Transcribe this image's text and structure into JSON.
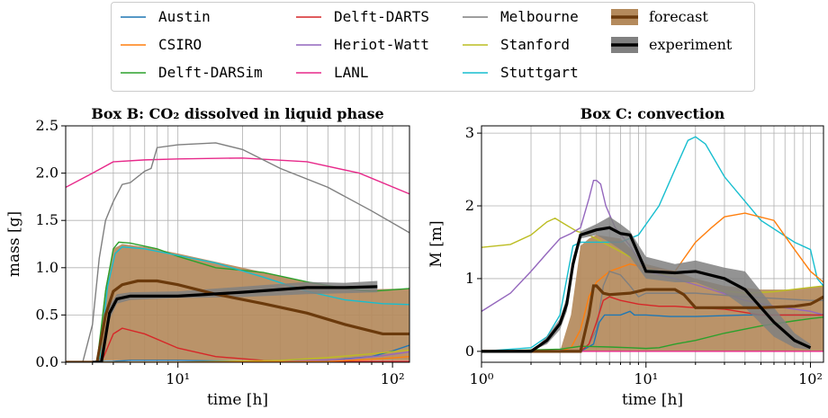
{
  "colors": {
    "Austin": "#1f77b4",
    "CSIRO": "#ff7f0e",
    "Delft-DARSim": "#2ca02c",
    "Delft-DARTS": "#d62728",
    "Heriot-Watt": "#9467bd",
    "LANL": "#e7298a",
    "Melbourne": "#7f7f7f",
    "Stanford": "#bcbd22",
    "Stuttgart": "#17becf",
    "forecast_fill": "#b48a5c",
    "forecast_line": "#6b3a0c",
    "experiment_band": "#808080",
    "experiment_line": "#000000"
  },
  "legend": {
    "items": [
      {
        "key": "Austin",
        "label": "Austin",
        "kind": "line",
        "mono": true
      },
      {
        "key": "CSIRO",
        "label": "CSIRO",
        "kind": "line",
        "mono": true
      },
      {
        "key": "Delft-DARSim",
        "label": "Delft-DARSim",
        "kind": "line",
        "mono": true
      },
      {
        "key": "Delft-DARTS",
        "label": "Delft-DARTS",
        "kind": "line",
        "mono": true
      },
      {
        "key": "Heriot-Watt",
        "label": "Heriot-Watt",
        "kind": "line",
        "mono": true
      },
      {
        "key": "LANL",
        "label": "LANL",
        "kind": "line",
        "mono": true
      },
      {
        "key": "Melbourne",
        "label": "Melbourne",
        "kind": "line",
        "mono": true
      },
      {
        "key": "Stanford",
        "label": "Stanford",
        "kind": "line",
        "mono": true
      },
      {
        "key": "Stuttgart",
        "label": "Stuttgart",
        "kind": "line",
        "mono": true
      },
      {
        "key": "forecast",
        "label": "forecast",
        "kind": "forecast",
        "mono": false
      },
      {
        "key": "experiment",
        "label": "experiment",
        "kind": "experiment",
        "mono": false
      }
    ]
  },
  "chart_data": [
    {
      "type": "line",
      "title": "Box B: CO₂ dissolved in liquid phase",
      "xlabel": "time [h]",
      "ylabel": "mass [g]",
      "xscale": "log",
      "xlim": [
        3,
        120
      ],
      "ylim": [
        0,
        2.5
      ],
      "xticks": [
        {
          "v": 10,
          "label": "10¹"
        },
        {
          "v": 100,
          "label": "10²"
        }
      ],
      "yticks": [
        {
          "v": 0,
          "label": "0.0"
        },
        {
          "v": 0.5,
          "label": "0.5"
        },
        {
          "v": 1.0,
          "label": "1.0"
        },
        {
          "v": 1.5,
          "label": "1.5"
        },
        {
          "v": 2.0,
          "label": "2.0"
        },
        {
          "v": 2.5,
          "label": "2.5"
        }
      ],
      "grid": true,
      "series": [
        {
          "key": "LANL",
          "x": [
            3,
            4,
            5,
            7,
            10,
            20,
            40,
            70,
            120
          ],
          "y": [
            1.85,
            2.0,
            2.12,
            2.14,
            2.15,
            2.16,
            2.12,
            2.0,
            1.78
          ]
        },
        {
          "key": "Melbourne",
          "x": [
            3,
            3.6,
            4.0,
            4.3,
            4.6,
            5.0,
            5.5,
            6.0,
            7.0,
            7.5,
            8.0,
            10,
            15,
            20,
            30,
            50,
            80,
            120
          ],
          "y": [
            0,
            0.0,
            0.4,
            1.1,
            1.5,
            1.7,
            1.88,
            1.9,
            2.02,
            2.05,
            2.27,
            2.3,
            2.32,
            2.25,
            2.05,
            1.85,
            1.6,
            1.37
          ]
        },
        {
          "key": "Delft-DARSim",
          "x": [
            3,
            4.2,
            4.6,
            5.0,
            5.3,
            6,
            8,
            10,
            15,
            25,
            40,
            60,
            80,
            120
          ],
          "y": [
            0,
            0.0,
            0.75,
            1.2,
            1.27,
            1.26,
            1.2,
            1.12,
            1.0,
            0.95,
            0.85,
            0.78,
            0.75,
            0.78
          ]
        },
        {
          "key": "Stuttgart",
          "x": [
            3,
            4.3,
            4.7,
            5.1,
            5.5,
            7,
            10,
            15,
            25,
            40,
            60,
            90,
            120
          ],
          "y": [
            0,
            0.0,
            0.8,
            1.15,
            1.22,
            1.2,
            1.13,
            1.05,
            0.9,
            0.75,
            0.66,
            0.62,
            0.61
          ]
        },
        {
          "key": "Delft-DARTS",
          "x": [
            3,
            4.4,
            5.0,
            5.5,
            7,
            10,
            15,
            25,
            40,
            60,
            90,
            120
          ],
          "y": [
            0,
            0.0,
            0.3,
            0.36,
            0.3,
            0.15,
            0.06,
            0.02,
            0.01,
            0.01,
            0.01,
            0.01
          ]
        },
        {
          "key": "Austin",
          "x": [
            3,
            5,
            6,
            10,
            20,
            50,
            80,
            100,
            120
          ],
          "y": [
            0,
            0.01,
            0.02,
            0.02,
            0.01,
            0.02,
            0.06,
            0.12,
            0.18
          ]
        },
        {
          "key": "Heriot-Watt",
          "x": [
            3,
            10,
            30,
            60,
            90,
            120
          ],
          "y": [
            0,
            0.0,
            0.01,
            0.03,
            0.07,
            0.11
          ]
        },
        {
          "key": "Stanford",
          "x": [
            3,
            10,
            30,
            50,
            80,
            120
          ],
          "y": [
            0,
            0.0,
            0.02,
            0.05,
            0.09,
            0.13
          ]
        },
        {
          "key": "CSIRO",
          "x": [
            3,
            10,
            50,
            80,
            120
          ],
          "y": [
            0,
            0.0,
            0.01,
            0.03,
            0.06
          ]
        }
      ],
      "forecast_band": {
        "x": [
          3,
          4.2,
          4.6,
          5.0,
          5.5,
          7,
          10,
          20,
          40,
          70,
          120
        ],
        "lower": [
          0,
          0.0,
          0.02,
          0.02,
          0.02,
          0.02,
          0.02,
          0.02,
          0.02,
          0.02,
          0.02
        ],
        "upper": [
          0,
          0.0,
          0.8,
          1.2,
          1.25,
          1.22,
          1.15,
          1.0,
          0.85,
          0.77,
          0.78
        ]
      },
      "forecast": {
        "x": [
          3,
          4.2,
          4.6,
          5.0,
          5.5,
          6.5,
          8,
          10,
          15,
          25,
          40,
          60,
          90,
          120
        ],
        "y": [
          0,
          0.0,
          0.5,
          0.75,
          0.82,
          0.86,
          0.86,
          0.82,
          0.72,
          0.62,
          0.52,
          0.4,
          0.3,
          0.3
        ]
      },
      "experiment_band": {
        "x": [
          4.0,
          4.4,
          4.8,
          5.2,
          6,
          10,
          20,
          40,
          60,
          85
        ],
        "lower": [
          0,
          0.0,
          0.45,
          0.62,
          0.66,
          0.68,
          0.69,
          0.72,
          0.73,
          0.74
        ],
        "upper": [
          0,
          0.05,
          0.6,
          0.72,
          0.74,
          0.75,
          0.8,
          0.85,
          0.84,
          0.86
        ]
      },
      "experiment": {
        "x": [
          4.0,
          4.4,
          4.8,
          5.2,
          6,
          10,
          20,
          40,
          60,
          85
        ],
        "y": [
          0,
          0.0,
          0.52,
          0.67,
          0.7,
          0.7,
          0.74,
          0.79,
          0.79,
          0.8
        ]
      }
    },
    {
      "type": "line",
      "title": "Box C: convection",
      "xlabel": "time [h]",
      "ylabel": "M [m]",
      "xscale": "log",
      "xlim": [
        1,
        120
      ],
      "ylim": [
        -0.15,
        3.1
      ],
      "xticks": [
        {
          "v": 1,
          "label": "10⁰"
        },
        {
          "v": 10,
          "label": "10¹"
        },
        {
          "v": 100,
          "label": "10²"
        }
      ],
      "yticks": [
        {
          "v": 0,
          "label": "0"
        },
        {
          "v": 1,
          "label": "1"
        },
        {
          "v": 2,
          "label": "2"
        },
        {
          "v": 3,
          "label": "3"
        }
      ],
      "grid": true,
      "series": [
        {
          "key": "LANL",
          "x": [
            1,
            120
          ],
          "y": [
            0,
            0
          ]
        },
        {
          "key": "Stanford",
          "x": [
            1,
            1.5,
            2,
            2.5,
            2.8,
            3.2,
            3.8,
            4.5,
            6,
            8,
            10,
            15,
            25,
            40,
            60,
            100,
            120
          ],
          "y": [
            1.43,
            1.47,
            1.6,
            1.78,
            1.83,
            1.75,
            1.65,
            1.6,
            1.45,
            1.3,
            1.15,
            1.0,
            0.85,
            0.8,
            0.82,
            0.88,
            0.9
          ]
        },
        {
          "key": "Heriot-Watt",
          "x": [
            1,
            1.5,
            2.0,
            2.5,
            3.0,
            3.5,
            4.0,
            4.5,
            4.8,
            5.0,
            5.3,
            5.7,
            6.5,
            8,
            10,
            15,
            25,
            40,
            60,
            100,
            120
          ],
          "y": [
            0.55,
            0.8,
            1.1,
            1.35,
            1.55,
            1.62,
            1.7,
            2.1,
            2.35,
            2.35,
            2.3,
            2.0,
            1.7,
            1.45,
            1.1,
            1.0,
            0.85,
            0.7,
            0.62,
            0.55,
            0.5
          ]
        },
        {
          "key": "Stuttgart",
          "x": [
            1,
            2,
            2.5,
            3.0,
            3.3,
            3.6,
            4,
            5,
            7,
            9,
            12,
            15,
            18,
            20,
            23,
            30,
            50,
            80,
            100,
            110,
            120
          ],
          "y": [
            0,
            0.05,
            0.2,
            0.5,
            1.0,
            1.45,
            1.5,
            1.5,
            1.5,
            1.6,
            2.0,
            2.5,
            2.9,
            2.95,
            2.85,
            2.4,
            1.8,
            1.5,
            1.4,
            1.0,
            0.9
          ]
        },
        {
          "key": "CSIRO",
          "x": [
            1,
            3,
            3.5,
            4.0,
            4.5,
            5,
            6,
            8,
            10,
            15,
            20,
            25,
            30,
            40,
            60,
            80,
            100,
            120
          ],
          "y": [
            0,
            0.0,
            0.05,
            0.3,
            0.75,
            0.95,
            1.1,
            1.2,
            1.15,
            1.1,
            1.5,
            1.7,
            1.85,
            1.9,
            1.8,
            1.4,
            1.1,
            0.95
          ]
        },
        {
          "key": "Melbourne",
          "x": [
            1,
            4,
            4.5,
            5,
            5.5,
            6,
            7,
            8,
            9,
            10,
            12,
            20,
            40,
            70,
            100,
            120
          ],
          "y": [
            0,
            0.0,
            0.1,
            0.3,
            0.9,
            1.1,
            1.05,
            0.9,
            0.75,
            0.8,
            0.8,
            0.8,
            0.75,
            0.72,
            0.7,
            0.7
          ]
        },
        {
          "key": "Austin",
          "x": [
            1,
            4,
            4.8,
            5.2,
            5.6,
            7,
            8,
            8.5,
            10,
            14,
            20,
            40,
            70,
            100,
            120
          ],
          "y": [
            0,
            0.0,
            0.1,
            0.4,
            0.5,
            0.5,
            0.55,
            0.5,
            0.5,
            0.48,
            0.48,
            0.5,
            0.5,
            0.5,
            0.5
          ]
        },
        {
          "key": "Delft-DARTS",
          "x": [
            1,
            4,
            4.5,
            5,
            5.5,
            6,
            7,
            9,
            12,
            15,
            20,
            30,
            50,
            80,
            100,
            120
          ],
          "y": [
            0,
            0.0,
            0.1,
            0.4,
            0.7,
            0.75,
            0.7,
            0.65,
            0.62,
            0.62,
            0.6,
            0.58,
            0.5,
            0.5,
            0.5,
            0.5
          ]
        },
        {
          "key": "Delft-DARSim",
          "x": [
            1,
            3,
            4,
            6,
            8,
            10,
            12,
            15,
            20,
            30,
            50,
            80,
            100,
            120
          ],
          "y": [
            0,
            0.03,
            0.07,
            0.06,
            0.05,
            0.04,
            0.05,
            0.1,
            0.15,
            0.25,
            0.35,
            0.42,
            0.45,
            0.47
          ]
        }
      ],
      "forecast_band": {
        "x": [
          1,
          3.0,
          3.5,
          4.0,
          4.5,
          5,
          7,
          10,
          15,
          20,
          30,
          50,
          80,
          100,
          120
        ],
        "lower": [
          0,
          0.0,
          0.0,
          0.0,
          0.0,
          0.0,
          0.0,
          0.0,
          0.0,
          0.0,
          0.0,
          0.0,
          0.0,
          0.0,
          0.0
        ],
        "upper": [
          0,
          0.0,
          0.5,
          1.45,
          1.55,
          1.6,
          1.55,
          1.2,
          1.1,
          1.0,
          0.9,
          0.85,
          0.85,
          0.88,
          0.9
        ]
      },
      "forecast": {
        "x": [
          1,
          4.0,
          4.5,
          4.8,
          5.0,
          5.5,
          6,
          8,
          10,
          15,
          17,
          20,
          30,
          50,
          80,
          100,
          110,
          120
        ],
        "y": [
          0,
          0.0,
          0.5,
          0.9,
          0.9,
          0.8,
          0.78,
          0.8,
          0.85,
          0.85,
          0.78,
          0.6,
          0.6,
          0.6,
          0.62,
          0.65,
          0.7,
          0.75
        ]
      },
      "experiment_band": {
        "x": [
          1,
          2.0,
          2.5,
          3.0,
          3.3,
          3.6,
          4.0,
          5,
          6,
          7,
          8,
          10,
          15,
          20,
          30,
          40,
          60,
          80,
          100
        ],
        "lower": [
          0,
          0.0,
          0.1,
          0.3,
          0.55,
          1.1,
          1.55,
          1.6,
          1.5,
          1.4,
          1.3,
          1.0,
          0.95,
          0.95,
          0.8,
          0.6,
          0.2,
          0.05,
          0.02
        ],
        "upper": [
          0,
          0.0,
          0.2,
          0.45,
          0.75,
          1.3,
          1.65,
          1.75,
          1.85,
          1.75,
          1.65,
          1.3,
          1.2,
          1.25,
          1.15,
          1.1,
          0.6,
          0.25,
          0.1
        ]
      },
      "experiment": {
        "x": [
          1,
          2.0,
          2.5,
          3.0,
          3.3,
          3.6,
          4.0,
          5,
          6,
          7,
          8,
          10,
          15,
          20,
          30,
          40,
          60,
          80,
          100
        ],
        "y": [
          0,
          0.0,
          0.15,
          0.38,
          0.65,
          1.2,
          1.6,
          1.67,
          1.7,
          1.62,
          1.6,
          1.1,
          1.08,
          1.1,
          1.0,
          0.85,
          0.4,
          0.15,
          0.05
        ]
      }
    }
  ]
}
